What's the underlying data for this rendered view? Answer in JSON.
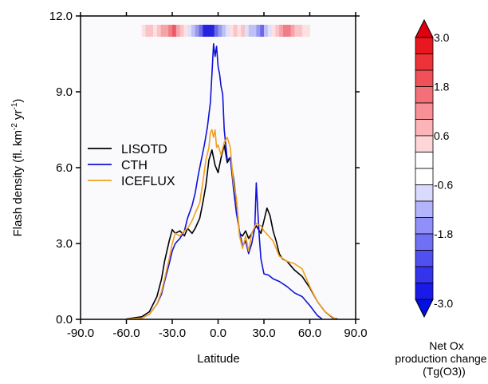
{
  "chart_data": {
    "type": "line",
    "xlabel": "Latitude",
    "ylabel_main": "Flash density (fl. km",
    "ylabel_sup1": "-2",
    "ylabel_mid": " yr",
    "ylabel_sup2": "-1",
    "ylabel_end": ")",
    "xlim": [
      -90,
      90
    ],
    "ylim": [
      0,
      12
    ],
    "xticks": [
      -90,
      -60,
      -30,
      0,
      30,
      60,
      90
    ],
    "xtick_labels": [
      "-90.0",
      "-60.0",
      "-30.0",
      "0.0",
      "30.0",
      "60.0",
      "90.0"
    ],
    "yticks": [
      0,
      3,
      6,
      9,
      12
    ],
    "ytick_labels": [
      "0.0",
      "3.0",
      "6.0",
      "9.0",
      "12.0"
    ],
    "legend_position": "middle-left",
    "series": [
      {
        "name": "LISOTD",
        "color": "#000000",
        "x": [
          -60,
          -50,
          -45,
          -40,
          -37,
          -35,
          -32,
          -30,
          -28,
          -25,
          -22,
          -20,
          -17,
          -15,
          -12,
          -10,
          -8,
          -6,
          -4,
          -2,
          0,
          2,
          4,
          6,
          8,
          10,
          12,
          14,
          16,
          18,
          20,
          22,
          25,
          28,
          30,
          32,
          34,
          36,
          38,
          40,
          42,
          45,
          50,
          55,
          60,
          65,
          70,
          75,
          78
        ],
        "y": [
          0.02,
          0.1,
          0.3,
          0.9,
          1.6,
          2.3,
          3.1,
          3.55,
          3.4,
          3.5,
          3.3,
          3.6,
          3.4,
          3.6,
          4.0,
          4.6,
          5.3,
          6.3,
          6.7,
          6.1,
          5.8,
          6.4,
          6.9,
          6.2,
          6.4,
          5.6,
          4.7,
          3.4,
          3.3,
          3.5,
          3.2,
          3.4,
          3.7,
          3.4,
          3.9,
          4.4,
          4.1,
          3.5,
          3.1,
          2.6,
          2.4,
          2.3,
          1.95,
          1.7,
          1.25,
          0.7,
          0.3,
          0.06,
          0.01
        ]
      },
      {
        "name": "CTH",
        "color": "#1010d8",
        "x": [
          -60,
          -50,
          -45,
          -40,
          -37,
          -35,
          -32,
          -30,
          -28,
          -25,
          -22,
          -20,
          -17,
          -15,
          -13,
          -11,
          -9,
          -7,
          -5,
          -4,
          -3,
          -2,
          -1,
          0,
          1,
          2,
          3,
          4,
          6,
          8,
          10,
          12,
          14,
          16,
          18,
          20,
          22,
          24,
          25,
          26,
          27,
          28,
          30,
          33,
          36,
          40,
          45,
          50,
          55,
          60,
          65,
          68
        ],
        "y": [
          0.01,
          0.05,
          0.2,
          0.6,
          1.0,
          1.5,
          2.2,
          2.7,
          3.0,
          3.2,
          3.5,
          4.0,
          4.5,
          5.0,
          5.7,
          6.3,
          6.9,
          7.6,
          8.6,
          9.7,
          10.9,
          10.4,
          10.8,
          10.0,
          9.7,
          9.2,
          8.9,
          7.5,
          6.3,
          6.4,
          5.2,
          4.2,
          3.5,
          2.9,
          3.1,
          2.6,
          3.0,
          3.6,
          5.4,
          4.3,
          3.2,
          2.4,
          1.8,
          1.75,
          1.6,
          1.5,
          1.3,
          1.05,
          0.9,
          0.55,
          0.15,
          0.02
        ]
      },
      {
        "name": "ICEFLUX",
        "color": "#f0a020",
        "x": [
          -60,
          -50,
          -45,
          -40,
          -37,
          -35,
          -32,
          -30,
          -28,
          -25,
          -22,
          -20,
          -17,
          -15,
          -12,
          -10,
          -8,
          -6,
          -5,
          -4,
          -3,
          -2,
          -1,
          0,
          2,
          4,
          6,
          8,
          10,
          12,
          14,
          16,
          18,
          20,
          22,
          25,
          28,
          30,
          33,
          36,
          40,
          45,
          50,
          55,
          60,
          65,
          70,
          75,
          77
        ],
        "y": [
          0.01,
          0.05,
          0.2,
          0.6,
          1.1,
          1.6,
          2.4,
          3.0,
          3.4,
          3.3,
          3.5,
          3.6,
          3.9,
          4.2,
          4.6,
          5.4,
          6.3,
          6.8,
          7.4,
          7.5,
          7.2,
          7.5,
          6.8,
          6.9,
          6.5,
          7.0,
          7.2,
          6.8,
          5.4,
          4.8,
          3.3,
          2.8,
          3.3,
          2.7,
          3.4,
          3.8,
          3.7,
          3.5,
          3.3,
          3.1,
          2.5,
          2.3,
          2.2,
          2.0,
          1.3,
          0.7,
          0.3,
          0.08,
          0.02
        ]
      }
    ],
    "heat_strip": {
      "x_start": -50,
      "x_end": 60,
      "cell_width": 2.5,
      "levels": [
        1,
        2,
        2,
        1,
        2,
        3,
        3,
        4,
        5,
        3,
        2,
        1,
        -1,
        -2,
        -3,
        -4,
        -5,
        -5,
        -5,
        -4,
        -3,
        -2,
        -1,
        1,
        2,
        1,
        2,
        -1,
        -2,
        -2,
        -3,
        -4,
        -2,
        -1,
        1,
        2,
        3,
        4,
        4,
        3,
        2,
        2,
        1,
        1
      ]
    },
    "colorbar": {
      "title_lines": [
        "Net Ox",
        "production change",
        "(Tg(O3))"
      ],
      "tick_labels": [
        "3.0",
        "1.8",
        "0.6",
        "-0.6",
        "-1.8",
        "-3.0"
      ],
      "colors": [
        "#e8181e",
        "#ec3438",
        "#f05058",
        "#f47078",
        "#f89098",
        "#fcb4b8",
        "#fed6d8",
        "#ffffff",
        "#ffffff",
        "#dadaff",
        "#b4b4fc",
        "#9090f8",
        "#7070f4",
        "#5050f0",
        "#3434ec",
        "#1a1ae8"
      ],
      "arrow_top_color": "#e00010",
      "arrow_bottom_color": "#0010e0"
    }
  }
}
